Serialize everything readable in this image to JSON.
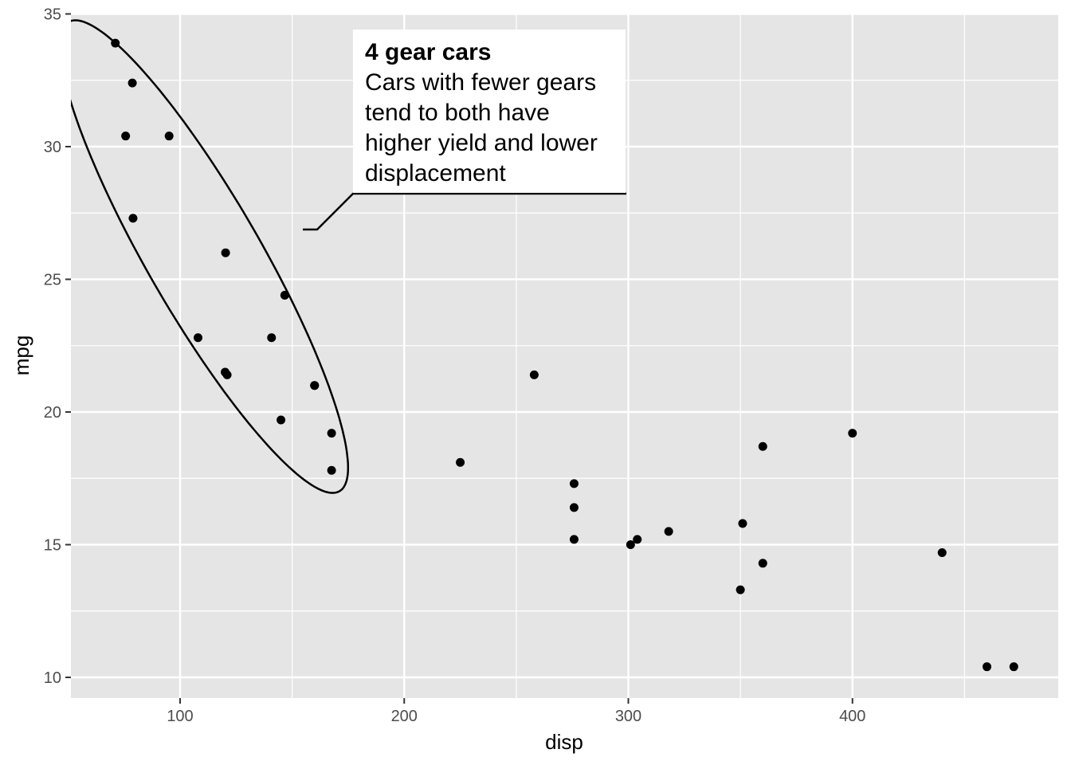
{
  "chart_data": {
    "type": "scatter",
    "xlabel": "disp",
    "ylabel": "mpg",
    "xlim": [
      50.3,
      490
    ],
    "ylim": [
      9.2,
      35.0
    ],
    "x_ticks": [
      100,
      200,
      300,
      400
    ],
    "y_ticks": [
      10,
      15,
      20,
      25,
      30,
      35
    ],
    "grid": true,
    "background": "#e5e5e5",
    "grid_color": "#ffffff",
    "point_color": "#000000",
    "points": [
      {
        "x": 160,
        "y": 21.0
      },
      {
        "x": 160,
        "y": 21.0
      },
      {
        "x": 108,
        "y": 22.8
      },
      {
        "x": 258,
        "y": 21.4
      },
      {
        "x": 360,
        "y": 18.7
      },
      {
        "x": 225,
        "y": 18.1
      },
      {
        "x": 360,
        "y": 14.3
      },
      {
        "x": 146.7,
        "y": 24.4
      },
      {
        "x": 140.8,
        "y": 22.8
      },
      {
        "x": 167.6,
        "y": 19.2
      },
      {
        "x": 167.6,
        "y": 17.8
      },
      {
        "x": 275.8,
        "y": 16.4
      },
      {
        "x": 275.8,
        "y": 17.3
      },
      {
        "x": 275.8,
        "y": 15.2
      },
      {
        "x": 472,
        "y": 10.4
      },
      {
        "x": 460,
        "y": 10.4
      },
      {
        "x": 440,
        "y": 14.7
      },
      {
        "x": 78.7,
        "y": 32.4
      },
      {
        "x": 75.7,
        "y": 30.4
      },
      {
        "x": 71.1,
        "y": 33.9
      },
      {
        "x": 120.1,
        "y": 21.5
      },
      {
        "x": 318,
        "y": 15.5
      },
      {
        "x": 304,
        "y": 15.2
      },
      {
        "x": 350,
        "y": 13.3
      },
      {
        "x": 400,
        "y": 19.2
      },
      {
        "x": 79,
        "y": 27.3
      },
      {
        "x": 120.3,
        "y": 26.0
      },
      {
        "x": 95.1,
        "y": 30.4
      },
      {
        "x": 351,
        "y": 15.8
      },
      {
        "x": 145,
        "y": 19.7
      },
      {
        "x": 301,
        "y": 15.0
      },
      {
        "x": 121,
        "y": 21.4
      }
    ],
    "annotation": {
      "title": "4 gear cars",
      "lines": [
        "Cars with fewer gears",
        "tend to both have",
        "higher yield and lower",
        "displacement"
      ]
    }
  }
}
